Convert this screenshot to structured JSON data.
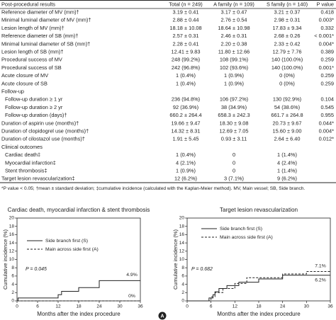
{
  "table": {
    "header": [
      "Post-procedural results",
      "Total (n = 249)",
      "A family (n = 109)",
      "S family (n = 140)",
      "P value"
    ],
    "rows": [
      [
        "Reference diameter of MV (mm)†",
        "3.19 ± 0.41",
        "3.17 ± 0.47",
        "3.21 ± 0.37",
        "0.418"
      ],
      [
        "Minimal luminal diameter of MV (mm)†",
        "2.88 ± 0.44",
        "2.76 ± 0.54",
        "2.98 ± 0.31",
        "0.003*"
      ],
      [
        "Lesion length of MV (mm)†",
        "18.18 ± 10.08",
        "18.64 ± 10.98",
        "17.83 ± 9.34",
        "0.332"
      ],
      [
        "Reference diameter of SB (mm)†",
        "2.57 ± 0.31",
        "2.46 ± 0.31",
        "2.68 ± 0.26",
        "< 0.001*"
      ],
      [
        "Minimal luminal diameter of SB (mm)†",
        "2.28 ± 0.41",
        "2.20 ± 0.38",
        "2.33 ± 0.42",
        "0.004*"
      ],
      [
        "Lesion length of SB (mm)†",
        "12.41 ± 9.83",
        "11.80 ± 12.66",
        "12.79 ± 7.76",
        "0.389"
      ],
      [
        "Procedural success of MV",
        "248 (99.2%)",
        "108 (99.1%)",
        "140 (100.0%)",
        "0.259"
      ],
      [
        "Procedural success of SB",
        "242 (96.8%)",
        "102 (93.6%)",
        "140 (100.0%)",
        "0.001*"
      ],
      [
        "Acute closure of MV",
        "1 (0.4%)",
        "1 (0.9%)",
        "0 (0%)",
        "0.259"
      ],
      [
        "Acute closure of SB",
        "1 (0.4%)",
        "1 (0.9%)",
        "0 (0%)",
        "0.259"
      ],
      [
        "Follow-up"
      ],
      [
        "Follow-up duration ≥ 1 yr",
        "236 (94.8%)",
        "106 (97.2%)",
        "130 (92.9%)",
        "0.104"
      ],
      [
        "Follow-up duration ≥ 2 yr",
        "92 (36.9%)",
        "38 (34.9%)",
        "54 (38.6%)",
        "0.545"
      ],
      [
        "Follow-up duration (days)†",
        "660.2 ± 264.4",
        "658.3 ± 242.3",
        "661.7 ± 264.8",
        "0.955"
      ],
      [
        "Duration of aspirin use (months)†",
        "19.66 ± 9.47",
        "18.30 ± 9.08",
        "20.73 ± 9.67",
        "0.044*"
      ],
      [
        "Duration of clopidogrel use (months)†",
        "14.32 ± 8.31",
        "12.69 ± 7.05",
        "15.60 ± 9.00",
        "0.004*"
      ],
      [
        "Duration of cilostazol use (months)†",
        "1.91 ± 5.45",
        "0.93 ± 3.11",
        "2.64 ± 6.40",
        "0.012*"
      ],
      [
        "Clinical outcomes"
      ],
      [
        "Cardiac death‡",
        "1 (0.4%)",
        "0",
        "1 (1.4%)"
      ],
      [
        "Myocardial infarction‡",
        "4 (2.1%)",
        "0",
        "4 (2.4%)"
      ],
      [
        "Stent thrombosis‡",
        "1 (0.9%)",
        "0",
        "1 (1.4%)"
      ],
      [
        "Target lesion revascularization‡",
        "12 (6.2%)",
        "3 (7.1%)",
        "9 (6.2%)"
      ]
    ],
    "footnote": "*P value < 0.05; †mean ± standard deviation; ‡cumulative incidence (calculated with the Kaplan-Meier method). MV, Main vessel; SB, Side branch."
  },
  "chart_data": [
    {
      "type": "step",
      "title": "Cardiac death, myocardial infarction & stent thrombosis",
      "xlabel": "Months after the index procedure",
      "ylabel": "Cumulative incidence (%)",
      "xlim": [
        0,
        36
      ],
      "xticks": [
        0,
        6,
        12,
        18,
        24,
        30,
        36
      ],
      "ylim": [
        0,
        20
      ],
      "yticks": [
        0,
        2,
        4,
        6,
        8,
        10,
        12,
        14,
        16,
        18,
        20
      ],
      "p_value": "P = 0.045",
      "series": [
        {
          "name": "Side branch first (S)",
          "color": "#222222",
          "style": "solid",
          "x": [
            0,
            0.3,
            12,
            13,
            18,
            24,
            36
          ],
          "values": [
            0,
            0.7,
            1.5,
            2.3,
            3.2,
            4.9,
            4.9
          ],
          "end_label": "4.9%"
        },
        {
          "name": "Main across side first (A)",
          "color": "#222222",
          "style": "dashed",
          "x": [
            0,
            36
          ],
          "values": [
            0,
            0
          ],
          "end_label": "0%"
        }
      ],
      "badge": "A"
    },
    {
      "type": "step",
      "title": "Target lesion revascularization",
      "xlabel": "Months after the index procedure",
      "ylabel": "Cumulative incidence (%)",
      "xlim": [
        0,
        36
      ],
      "xticks": [
        0,
        6,
        12,
        18,
        24,
        30,
        36
      ],
      "ylim": [
        0,
        20
      ],
      "yticks": [
        0,
        2,
        4,
        6,
        8,
        10,
        12,
        14,
        16,
        18,
        20
      ],
      "p_value": "P = 0.682",
      "series": [
        {
          "name": "Side branch first (S)",
          "color": "#222222",
          "style": "solid",
          "x": [
            0,
            5.5,
            6.5,
            7,
            8,
            10,
            13,
            18,
            24,
            36
          ],
          "values": [
            0,
            0.7,
            1.5,
            2.2,
            3,
            3.7,
            4.5,
            5.3,
            6.2,
            6.2
          ],
          "end_label": "6.2%"
        },
        {
          "name": "Main across side first (A)",
          "color": "#222222",
          "style": "dashed",
          "x": [
            0,
            6,
            7,
            9,
            12,
            15,
            24,
            30,
            36
          ],
          "values": [
            0,
            1,
            2,
            3,
            4.2,
            5.6,
            6.5,
            7.1,
            7.1
          ],
          "end_label": "7.1%"
        }
      ]
    }
  ]
}
